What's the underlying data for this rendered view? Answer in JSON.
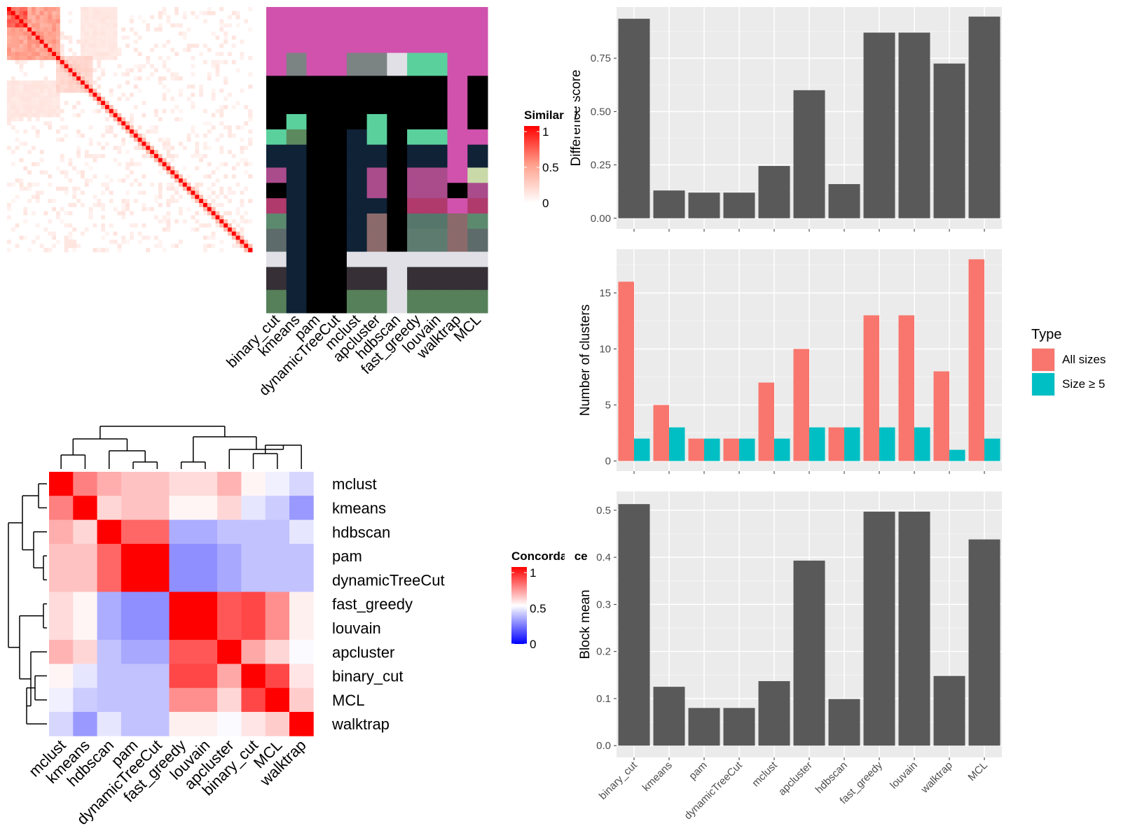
{
  "chart_data": [
    {
      "type": "heatmap",
      "name": "similarity-heatmap",
      "title": "",
      "legend_title": "Similarity",
      "legend_ticks": [
        "1",
        "0.5",
        "0"
      ],
      "legend_range": [
        0,
        1
      ],
      "n": 60,
      "palette": {
        "high": "#ff0000",
        "mid": "#ffa08c",
        "low": "#ffffff"
      },
      "note_blocks": [
        {
          "rows": [
            0,
            12
          ],
          "cols": [
            0,
            12
          ],
          "value": 0.55
        },
        {
          "rows": [
            0,
            4
          ],
          "cols": [
            0,
            4
          ],
          "value": 0.85
        },
        {
          "rows": [
            5,
            8
          ],
          "cols": [
            5,
            8
          ],
          "value": 0.6
        },
        {
          "rows": [
            12,
            20
          ],
          "cols": [
            12,
            20
          ],
          "value": 0.25
        },
        {
          "rows": [
            18,
            26
          ],
          "cols": [
            0,
            12
          ],
          "value": 0.15
        }
      ]
    },
    {
      "type": "heatmap",
      "name": "cluster-membership",
      "columns": [
        "binary_cut",
        "kmeans",
        "pam",
        "dynamicTreeCut",
        "mclust",
        "apcluster",
        "hdbscan",
        "fast_greedy",
        "louvain",
        "walktrap",
        "MCL"
      ],
      "row_groups": [
        {
          "rows": 12,
          "colors": [
            "#d052ad",
            "#d052ad",
            "#d052ad",
            "#d052ad",
            "#d052ad",
            "#d052ad",
            "#d052ad",
            "#d052ad",
            "#d052ad",
            "#d052ad",
            "#d052ad"
          ]
        },
        {
          "rows": 6,
          "colors": [
            "#d052ad",
            "#7b8383",
            "#d052ad",
            "#d052ad",
            "#7b8383",
            "#7b8383",
            "#e0e0e6",
            "#5ad19d",
            "#5ad19d",
            "#d052ad",
            "#d052ad"
          ]
        },
        {
          "rows": 10,
          "colors": [
            "#000000",
            "#000000",
            "#000000",
            "#000000",
            "#000000",
            "#000000",
            "#000000",
            "#000000",
            "#000000",
            "#d052ad",
            "#000000"
          ]
        },
        {
          "rows": 4,
          "colors": [
            "#000000",
            "#5ad19d",
            "#000000",
            "#000000",
            "#000000",
            "#5ad19d",
            "#000000",
            "#000000",
            "#000000",
            "#d052ad",
            "#000000"
          ]
        },
        {
          "rows": 4,
          "colors": [
            "#5ad19d",
            "#5c8a5e",
            "#000000",
            "#000000",
            "#0f2236",
            "#5ad19d",
            "#000000",
            "#5ad19d",
            "#5ad19d",
            "#d052ad",
            "#d052ad"
          ]
        },
        {
          "rows": 6,
          "colors": [
            "#0f2236",
            "#0f2236",
            "#000000",
            "#000000",
            "#0f2236",
            "#0f2236",
            "#000000",
            "#0f2236",
            "#0f2236",
            "#d052ad",
            "#0f2236"
          ]
        },
        {
          "rows": 4,
          "colors": [
            "#aa4b8c",
            "#0f2236",
            "#000000",
            "#000000",
            "#0f2236",
            "#aa4b8c",
            "#000000",
            "#aa4b8c",
            "#aa4b8c",
            "#d052ad",
            "#c9d9a8"
          ]
        },
        {
          "rows": 4,
          "colors": [
            "#000000",
            "#0f2236",
            "#000000",
            "#000000",
            "#0f2236",
            "#aa4b8c",
            "#000000",
            "#aa4b8c",
            "#aa4b8c",
            "#000000",
            "#aa4b8c"
          ]
        },
        {
          "rows": 4,
          "colors": [
            "#b03a6c",
            "#0f2236",
            "#000000",
            "#000000",
            "#0f2236",
            "#0f2236",
            "#000000",
            "#b03a6c",
            "#b03a6c",
            "#d052ad",
            "#b03a6c"
          ]
        },
        {
          "rows": 4,
          "colors": [
            "#5c8a6f",
            "#0f2236",
            "#000000",
            "#000000",
            "#0f2236",
            "#8b6a6b",
            "#000000",
            "#56766b",
            "#56766b",
            "#8b6a6b",
            "#5c8a6f"
          ]
        },
        {
          "rows": 6,
          "colors": [
            "#5e6b6b",
            "#0f2236",
            "#000000",
            "#000000",
            "#0f2236",
            "#8b6a6b",
            "#000000",
            "#5e7b70",
            "#5e7b70",
            "#8b6a6b",
            "#5e6b6b"
          ]
        },
        {
          "rows": 4,
          "colors": [
            "#e0e0e6",
            "#0f2236",
            "#000000",
            "#000000",
            "#e0e0e6",
            "#e0e0e6",
            "#e0e0e6",
            "#e0e0e6",
            "#e0e0e6",
            "#e0e0e6",
            "#e0e0e6"
          ]
        },
        {
          "rows": 6,
          "colors": [
            "#363036",
            "#0f2236",
            "#000000",
            "#000000",
            "#363036",
            "#363036",
            "#e0e0e6",
            "#363036",
            "#363036",
            "#363036",
            "#363036"
          ]
        },
        {
          "rows": 6,
          "colors": [
            "#56805a",
            "#0f2236",
            "#000000",
            "#000000",
            "#56805a",
            "#56805a",
            "#e0e0e6",
            "#56805a",
            "#56805a",
            "#56805a",
            "#56805a"
          ]
        }
      ]
    },
    {
      "type": "heatmap",
      "name": "concordance-heatmap",
      "legend_title": "Concordance",
      "legend_ticks": [
        "1",
        "0.5",
        "0"
      ],
      "legend_range": [
        0,
        1
      ],
      "labels": [
        "mclust",
        "kmeans",
        "hdbscan",
        "pam",
        "dynamicTreeCut",
        "fast_greedy",
        "louvain",
        "apcluster",
        "binary_cut",
        "MCL",
        "walktrap"
      ],
      "matrix": [
        [
          1.0,
          0.75,
          0.66,
          0.62,
          0.62,
          0.57,
          0.57,
          0.65,
          0.52,
          0.47,
          0.42
        ],
        [
          0.75,
          1.0,
          0.58,
          0.62,
          0.62,
          0.52,
          0.52,
          0.58,
          0.45,
          0.4,
          0.3
        ],
        [
          0.66,
          0.58,
          1.0,
          0.8,
          0.8,
          0.34,
          0.34,
          0.38,
          0.38,
          0.38,
          0.45
        ],
        [
          0.62,
          0.62,
          0.8,
          1.0,
          1.0,
          0.28,
          0.28,
          0.33,
          0.38,
          0.38,
          0.38
        ],
        [
          0.62,
          0.62,
          0.8,
          1.0,
          1.0,
          0.28,
          0.28,
          0.33,
          0.38,
          0.38,
          0.38
        ],
        [
          0.57,
          0.52,
          0.34,
          0.28,
          0.28,
          1.0,
          1.0,
          0.83,
          0.86,
          0.72,
          0.53
        ],
        [
          0.57,
          0.52,
          0.34,
          0.28,
          0.28,
          1.0,
          1.0,
          0.83,
          0.86,
          0.72,
          0.53
        ],
        [
          0.65,
          0.58,
          0.38,
          0.33,
          0.33,
          0.83,
          0.83,
          1.0,
          0.67,
          0.58,
          0.49
        ],
        [
          0.52,
          0.45,
          0.38,
          0.38,
          0.38,
          0.86,
          0.86,
          0.67,
          1.0,
          0.86,
          0.55
        ],
        [
          0.47,
          0.4,
          0.38,
          0.38,
          0.38,
          0.72,
          0.72,
          0.58,
          0.86,
          1.0,
          0.6
        ],
        [
          0.42,
          0.3,
          0.45,
          0.38,
          0.38,
          0.53,
          0.53,
          0.49,
          0.55,
          0.6,
          1.0
        ]
      ]
    },
    {
      "type": "bar",
      "name": "difference-score",
      "ylabel": "Difference score",
      "categories": [
        "binary_cut",
        "kmeans",
        "pam",
        "dynamicTreeCut",
        "mclust",
        "apcluster",
        "hdbscan",
        "fast_greedy",
        "louvain",
        "walktrap",
        "MCL"
      ],
      "values": [
        0.935,
        0.13,
        0.12,
        0.12,
        0.245,
        0.6,
        0.16,
        0.87,
        0.87,
        0.725,
        0.945
      ],
      "yticks": [
        "0.00",
        "0.25",
        "0.50",
        "0.75"
      ],
      "ylim": [
        -0.05,
        0.99
      ],
      "grid": true,
      "bar_color": "#595959"
    },
    {
      "type": "bar",
      "name": "number-of-clusters",
      "ylabel": "Number of clusters",
      "categories": [
        "binary_cut",
        "kmeans",
        "pam",
        "dynamicTreeCut",
        "mclust",
        "apcluster",
        "hdbscan",
        "fast_greedy",
        "louvain",
        "walktrap",
        "MCL"
      ],
      "series": [
        {
          "name": "All sizes",
          "color": "#F8766D",
          "values": [
            16,
            5,
            2,
            2,
            7,
            10,
            3,
            13,
            13,
            8,
            18
          ]
        },
        {
          "name": "Size ≥ 5",
          "color": "#00BFC4",
          "values": [
            2,
            3,
            2,
            2,
            2,
            3,
            3,
            3,
            3,
            1,
            2
          ]
        }
      ],
      "yticks": [
        "0",
        "5",
        "10",
        "15"
      ],
      "ylim": [
        -0.9,
        18.9
      ],
      "legend_title": "Type",
      "legend_position": "right",
      "grid": true
    },
    {
      "type": "bar",
      "name": "block-mean",
      "ylabel": "Block mean",
      "categories": [
        "binary_cut",
        "kmeans",
        "pam",
        "dynamicTreeCut",
        "mclust",
        "apcluster",
        "hdbscan",
        "fast_greedy",
        "louvain",
        "walktrap",
        "MCL"
      ],
      "values": [
        0.513,
        0.125,
        0.08,
        0.08,
        0.137,
        0.393,
        0.099,
        0.497,
        0.497,
        0.148,
        0.438
      ],
      "yticks": [
        "0.0",
        "0.1",
        "0.2",
        "0.3",
        "0.4",
        "0.5"
      ],
      "ylim": [
        -0.025,
        0.54
      ],
      "grid": true,
      "bar_color": "#595959"
    }
  ]
}
